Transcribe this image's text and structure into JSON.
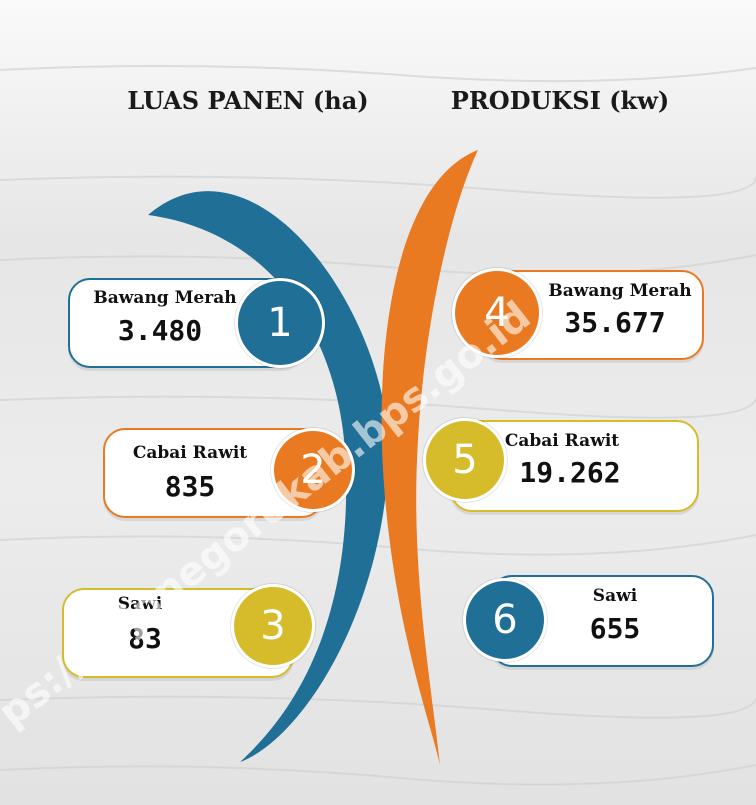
{
  "left": {
    "title": "LUAS PANEN (ha)",
    "items": [
      {
        "label": "Bawang Merah",
        "value": "3.480",
        "number": "1"
      },
      {
        "label": "Cabai Rawit",
        "value": "835",
        "number": "2"
      },
      {
        "label": "Sawi",
        "value": "83",
        "number": "3"
      }
    ]
  },
  "right": {
    "title": "PRODUKSI (kw)",
    "items": [
      {
        "label": "Bawang Merah",
        "value": "35.677",
        "number": "4"
      },
      {
        "label": "Cabai Rawit",
        "value": "19.262",
        "number": "5"
      },
      {
        "label": "Sawi",
        "value": "655",
        "number": "6"
      }
    ]
  },
  "watermark": "ps://bojonegorokab.bps.go.id"
}
